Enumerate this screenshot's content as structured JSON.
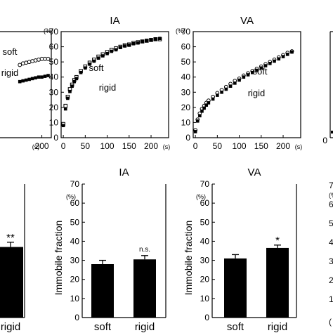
{
  "chart_data": [
    {
      "type": "scatter",
      "title": "",
      "y_unit": "(%)",
      "x_unit": "(s)",
      "xlim": [
        0,
        230
      ],
      "ylim": [
        0,
        70
      ],
      "x_ticks": [
        "200"
      ],
      "series": [
        {
          "name": "soft",
          "marker": "open-circle",
          "x": [
            130,
            140,
            150,
            160,
            170,
            180,
            190,
            200,
            210,
            220
          ],
          "y": [
            48,
            49,
            49.5,
            50,
            50.5,
            51,
            51.5,
            52,
            52,
            52
          ]
        },
        {
          "name": "rigid",
          "marker": "filled-square",
          "x": [
            130,
            140,
            150,
            160,
            170,
            180,
            190,
            200,
            210,
            220
          ],
          "y": [
            37,
            37.5,
            38,
            38.5,
            39,
            39.5,
            40,
            40,
            40.5,
            41
          ]
        }
      ]
    },
    {
      "type": "scatter",
      "title": "IA",
      "y_unit": "(%)",
      "x_unit": "(s)",
      "xlim": [
        -5,
        240
      ],
      "ylim": [
        0,
        70
      ],
      "x_ticks": [
        "0",
        "50",
        "100",
        "150",
        "200"
      ],
      "y_ticks": [
        "0",
        "10",
        "20",
        "30",
        "40",
        "50",
        "60",
        "70"
      ],
      "series": [
        {
          "name": "soft",
          "marker": "open-square",
          "x": [
            0,
            5,
            10,
            15,
            20,
            25,
            30,
            40,
            50,
            60,
            70,
            80,
            90,
            100,
            110,
            120,
            130,
            140,
            150,
            160,
            170,
            180,
            190,
            200,
            210,
            220
          ],
          "y": [
            9,
            21,
            27,
            32,
            35,
            38,
            40,
            44,
            47,
            49.5,
            51.5,
            53.5,
            55,
            56.5,
            58,
            59,
            60,
            61,
            61.5,
            62.5,
            63,
            63.5,
            64,
            64.5,
            65,
            65
          ]
        },
        {
          "name": "rigid",
          "marker": "filled-square",
          "x": [
            0,
            5,
            10,
            15,
            20,
            25,
            30,
            40,
            50,
            60,
            70,
            80,
            90,
            100,
            110,
            120,
            130,
            140,
            150,
            160,
            170,
            180,
            190,
            200,
            210,
            220
          ],
          "y": [
            8,
            19,
            26,
            30.5,
            34,
            37,
            39,
            43,
            46,
            48.5,
            50.5,
            52.5,
            54,
            55.5,
            57,
            58,
            59.5,
            60.5,
            61,
            62,
            62.5,
            63.5,
            64,
            64.5,
            65,
            65.5
          ]
        }
      ]
    },
    {
      "type": "scatter",
      "title": "VA",
      "y_unit": "(%)",
      "x_unit": "(s)",
      "xlim": [
        -5,
        240
      ],
      "ylim": [
        0,
        70
      ],
      "x_ticks": [
        "0",
        "50",
        "100",
        "150",
        "200"
      ],
      "y_ticks": [
        "0",
        "10",
        "20",
        "30",
        "40",
        "50",
        "60",
        "70"
      ],
      "series": [
        {
          "name": "soft",
          "marker": "open-circle",
          "x": [
            0,
            5,
            10,
            15,
            20,
            25,
            30,
            40,
            50,
            60,
            70,
            80,
            90,
            100,
            110,
            120,
            130,
            140,
            150,
            160,
            170,
            180,
            190,
            200,
            210,
            220
          ],
          "y": [
            5,
            12,
            16,
            19,
            21,
            23,
            24.5,
            27,
            29.5,
            31.5,
            33.5,
            35.5,
            37.5,
            39,
            41,
            42.5,
            44,
            45.5,
            47,
            48.5,
            50,
            51.5,
            53,
            54.5,
            56,
            57
          ]
        },
        {
          "name": "rigid",
          "marker": "filled-square",
          "x": [
            0,
            5,
            10,
            15,
            20,
            25,
            30,
            40,
            50,
            60,
            70,
            80,
            90,
            100,
            110,
            120,
            130,
            140,
            150,
            160,
            170,
            180,
            190,
            200,
            210,
            220
          ],
          "y": [
            4,
            11,
            14.5,
            17.5,
            19.5,
            21.5,
            23,
            25.5,
            28,
            30,
            32,
            34,
            36,
            38,
            40,
            41.5,
            43,
            44.5,
            46,
            47.5,
            49,
            50.5,
            52,
            53.5,
            55,
            56.5
          ]
        }
      ]
    },
    {
      "type": "bar",
      "title": "",
      "categories": [
        "",
        "rigid"
      ],
      "values": [
        null,
        37
      ],
      "errors": [
        null,
        2.5
      ],
      "annotations": [
        "",
        "**"
      ],
      "ylim": [
        0,
        70
      ]
    },
    {
      "type": "bar",
      "title": "IA",
      "ylabel": "Immobile fraction",
      "y_unit": "(%)",
      "categories": [
        "soft",
        "rigid"
      ],
      "values": [
        28,
        30.5
      ],
      "errors": [
        2,
        2
      ],
      "annotations": [
        "",
        "n.s."
      ],
      "ylim": [
        0,
        70
      ],
      "y_ticks": [
        "0",
        "10",
        "20",
        "30",
        "40",
        "50",
        "60",
        "70"
      ]
    },
    {
      "type": "bar",
      "title": "VA",
      "ylabel": "Immobile fraction",
      "y_unit": "(%)",
      "categories": [
        "soft",
        "rigid"
      ],
      "values": [
        31,
        36.5
      ],
      "errors": [
        2,
        1.5
      ],
      "annotations": [
        "",
        "*"
      ],
      "ylim": [
        0,
        70
      ],
      "y_ticks": [
        "0",
        "10",
        "20",
        "30",
        "40",
        "50",
        "60",
        "70"
      ]
    }
  ],
  "edge_fragments": {
    "right_top_tick": "0",
    "right_bottom_ticks": [
      "7",
      "(%",
      "6",
      "5",
      "4",
      "3",
      "2",
      "1"
    ],
    "right_bottom_tick_bottom": "("
  }
}
